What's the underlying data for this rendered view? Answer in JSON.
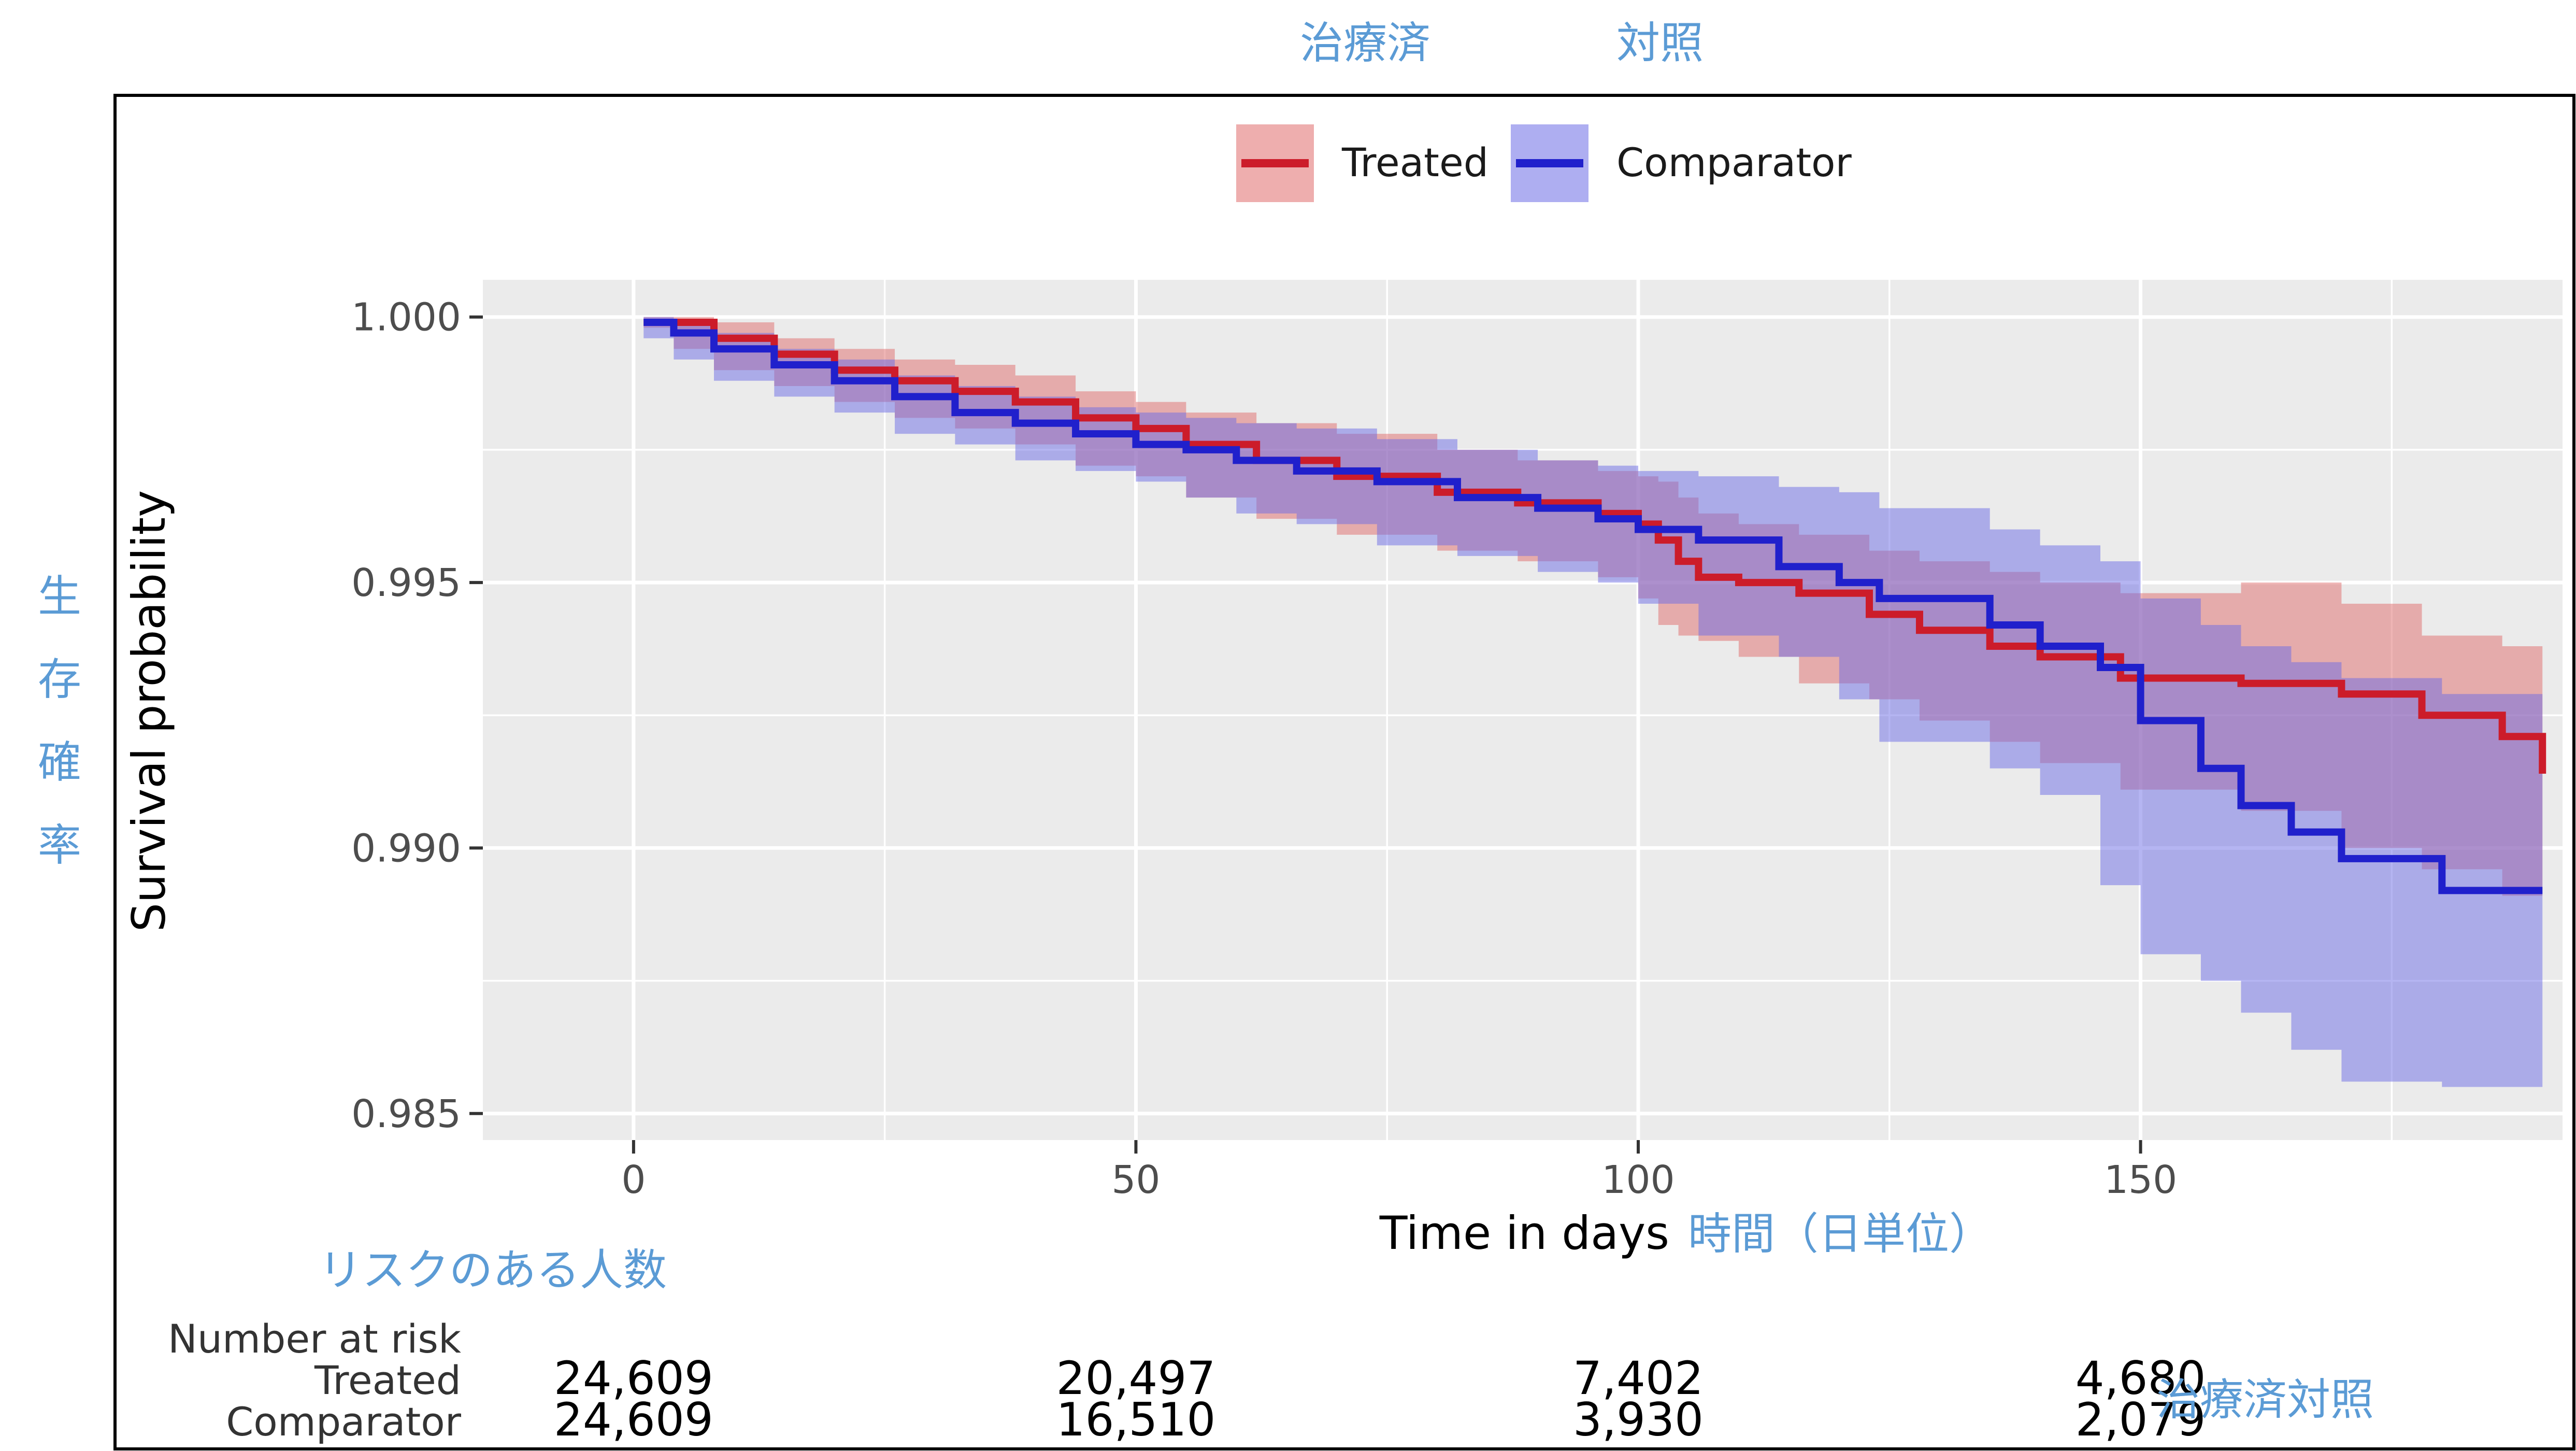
{
  "annotations": {
    "legend_treated_jp": "治療済",
    "legend_comparator_jp": "対照",
    "ylabel_jp": [
      "生",
      "存",
      "確",
      "率"
    ],
    "xlabel_jp": "時間（日単位）",
    "risk_title_jp": "リスクのある人数",
    "risk_rows_jp": "治療済対照"
  },
  "chart_data": {
    "type": "line",
    "title": "",
    "xlabel": "Time in days",
    "ylabel": "Survival probability",
    "xlim": [
      -15,
      192
    ],
    "ylim": [
      0.9845,
      1.0007
    ],
    "x_ticks": [
      0,
      50,
      100,
      150
    ],
    "y_ticks": [
      0.985,
      0.99,
      0.995,
      1.0
    ],
    "y_tick_labels": [
      "0.985",
      "0.990",
      "0.995",
      "1.000"
    ],
    "grid": true,
    "legend": {
      "position": "top",
      "entries": [
        "Treated",
        "Comparator"
      ]
    },
    "colors": {
      "Treated": "#cc1c2a",
      "Comparator": "#2020cc",
      "Treated_band": "#e06c6c",
      "Comparator_band": "#6c6ce6",
      "panel": "#ebebeb",
      "grid": "#ffffff"
    },
    "series": [
      {
        "name": "Treated",
        "x": [
          1,
          4,
          8,
          14,
          20,
          26,
          32,
          38,
          44,
          50,
          55,
          62,
          70,
          80,
          88,
          96,
          100,
          102,
          104,
          106,
          110,
          116,
          123,
          128,
          135,
          140,
          148,
          160,
          170,
          178,
          186,
          190
        ],
        "y": [
          0.9999,
          0.9999,
          0.9996,
          0.9993,
          0.999,
          0.9988,
          0.9986,
          0.9984,
          0.9981,
          0.9979,
          0.9976,
          0.9973,
          0.997,
          0.9967,
          0.9965,
          0.9963,
          0.9961,
          0.9958,
          0.9954,
          0.9951,
          0.995,
          0.9948,
          0.9944,
          0.9941,
          0.9938,
          0.9936,
          0.9932,
          0.9931,
          0.9929,
          0.9925,
          0.9921,
          0.9914
        ],
        "lower": [
          0.9999,
          0.9998,
          0.9994,
          0.999,
          0.9987,
          0.9984,
          0.9981,
          0.9979,
          0.9976,
          0.9972,
          0.997,
          0.9966,
          0.9962,
          0.9959,
          0.9956,
          0.9954,
          0.9951,
          0.9947,
          0.9942,
          0.994,
          0.9939,
          0.9936,
          0.9931,
          0.9928,
          0.9924,
          0.992,
          0.9916,
          0.9911,
          0.9907,
          0.99,
          0.9896,
          0.9891
        ],
        "upper": [
          1.0,
          1.0,
          0.9999,
          0.9996,
          0.9994,
          0.9992,
          0.9991,
          0.9989,
          0.9986,
          0.9984,
          0.9982,
          0.998,
          0.9978,
          0.9975,
          0.9973,
          0.9971,
          0.997,
          0.9969,
          0.9966,
          0.9963,
          0.9961,
          0.9959,
          0.9956,
          0.9954,
          0.9952,
          0.995,
          0.9948,
          0.995,
          0.9946,
          0.994,
          0.9938,
          0.9935
        ]
      },
      {
        "name": "Comparator",
        "x": [
          1,
          4,
          8,
          14,
          20,
          26,
          32,
          38,
          44,
          50,
          55,
          60,
          66,
          74,
          82,
          90,
          96,
          100,
          106,
          114,
          120,
          124,
          135,
          140,
          146,
          150,
          156,
          160,
          165,
          170,
          180,
          190
        ],
        "y": [
          0.9999,
          0.9997,
          0.9994,
          0.9991,
          0.9988,
          0.9985,
          0.9982,
          0.998,
          0.9978,
          0.9976,
          0.9975,
          0.9973,
          0.9971,
          0.9969,
          0.9966,
          0.9964,
          0.9962,
          0.996,
          0.9958,
          0.9953,
          0.995,
          0.9947,
          0.9942,
          0.9938,
          0.9934,
          0.9924,
          0.9915,
          0.9908,
          0.9903,
          0.9898,
          0.9892,
          0.9892
        ],
        "lower": [
          0.9998,
          0.9996,
          0.9992,
          0.9988,
          0.9985,
          0.9982,
          0.9978,
          0.9976,
          0.9973,
          0.9971,
          0.9969,
          0.9966,
          0.9963,
          0.9961,
          0.9957,
          0.9955,
          0.9952,
          0.995,
          0.9946,
          0.994,
          0.9936,
          0.9928,
          0.992,
          0.9915,
          0.991,
          0.9893,
          0.988,
          0.9875,
          0.9869,
          0.9862,
          0.9856,
          0.9855
        ],
        "upper": [
          1.0,
          0.9999,
          0.9997,
          0.9994,
          0.9992,
          0.9989,
          0.9987,
          0.9985,
          0.9983,
          0.9982,
          0.9981,
          0.998,
          0.9979,
          0.9977,
          0.9975,
          0.9973,
          0.9972,
          0.9971,
          0.997,
          0.9968,
          0.9967,
          0.9964,
          0.996,
          0.9957,
          0.9954,
          0.9947,
          0.9942,
          0.9938,
          0.9935,
          0.9932,
          0.9929,
          0.9929
        ]
      }
    ],
    "risk_table": {
      "title": "Number at risk",
      "times": [
        0,
        50,
        100,
        150
      ],
      "rows": [
        {
          "name": "Treated",
          "values": [
            "24,609",
            "20,497",
            "7,402",
            "4,680"
          ]
        },
        {
          "name": "Comparator",
          "values": [
            "24,609",
            "16,510",
            "3,930",
            "2,079"
          ]
        }
      ]
    }
  }
}
